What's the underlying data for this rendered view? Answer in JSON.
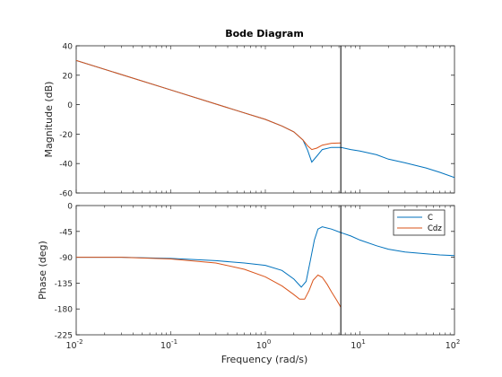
{
  "chart_data": {
    "type": "line",
    "title": "Bode Diagram",
    "xlabel": "Frequency  (rad/s)",
    "x_scale": "log",
    "xlim": [
      0.01,
      100
    ],
    "x_tick_values": [
      0.01,
      0.1,
      1,
      10,
      100
    ],
    "x_tick_labels": [
      {
        "base": "10",
        "exp": "-2"
      },
      {
        "base": "10",
        "exp": "-1"
      },
      {
        "base": "10",
        "exp": "0"
      },
      {
        "base": "10",
        "exp": "1"
      },
      {
        "base": "10",
        "exp": "2"
      }
    ],
    "vertical_marker_x": 6.28,
    "colors": {
      "C": "#0072bd",
      "Cdz": "#d95319",
      "marker": "#000000",
      "axis": "#262626",
      "grid_text": "#262626"
    },
    "legend": {
      "placement": "top-right",
      "panel": "phase",
      "entries": [
        "C",
        "Cdz"
      ]
    },
    "panels": [
      {
        "id": "magnitude",
        "ylabel": "Magnitude (dB)",
        "ylim": [
          -60,
          40
        ],
        "y_ticks": [
          40,
          20,
          0,
          -20,
          -40,
          -60
        ],
        "series": [
          {
            "name": "C",
            "x": [
              0.01,
              0.1,
              0.5,
              1,
              1.5,
              2,
              2.5,
              2.8,
              3.1,
              3.5,
              4,
              5,
              6.28,
              8,
              10,
              15,
              20,
              30,
              50,
              70,
              100
            ],
            "y": [
              30,
              10,
              -4,
              -10,
              -14.5,
              -18.5,
              -24,
              -31,
              -39,
              -35,
              -30.5,
              -29,
              -29,
              -30.5,
              -31.5,
              -34,
              -37,
              -39.5,
              -43,
              -46,
              -49.5
            ]
          },
          {
            "name": "Cdz",
            "x": [
              0.01,
              0.1,
              0.5,
              1,
              1.5,
              2,
              2.5,
              2.8,
              3.1,
              3.5,
              4,
              5,
              6.28
            ],
            "y": [
              30,
              10,
              -4,
              -10,
              -14.5,
              -18.5,
              -24,
              -28,
              -30.5,
              -29.5,
              -27.5,
              -26.2,
              -26
            ]
          }
        ]
      },
      {
        "id": "phase",
        "ylabel": "Phase (deg)",
        "ylim": [
          -225,
          0
        ],
        "y_ticks": [
          0,
          -45,
          -90,
          -135,
          -180,
          -225
        ],
        "series": [
          {
            "name": "C",
            "x": [
              0.01,
              0.03,
              0.1,
              0.3,
              0.6,
              1,
              1.5,
              2,
              2.4,
              2.7,
              3,
              3.3,
              3.6,
              4,
              5,
              6.28,
              8,
              10,
              15,
              20,
              30,
              50,
              70,
              100
            ],
            "y": [
              -90,
              -90,
              -92,
              -96,
              -100,
              -104,
              -113,
              -128,
              -142,
              -132,
              -95,
              -60,
              -41,
              -37,
              -41,
              -47,
              -53,
              -60,
              -70,
              -76,
              -81,
              -84,
              -86,
              -87
            ]
          },
          {
            "name": "Cdz",
            "x": [
              0.01,
              0.03,
              0.1,
              0.3,
              0.6,
              1,
              1.5,
              2,
              2.3,
              2.6,
              2.9,
              3.2,
              3.6,
              4,
              4.5,
              5,
              5.7,
              6.28
            ],
            "y": [
              -90,
              -90,
              -93,
              -100,
              -111,
              -124,
              -140,
              -155,
              -163,
              -163,
              -148,
              -130,
              -121,
              -125,
              -137,
              -150,
              -165,
              -177
            ]
          }
        ]
      }
    ]
  }
}
